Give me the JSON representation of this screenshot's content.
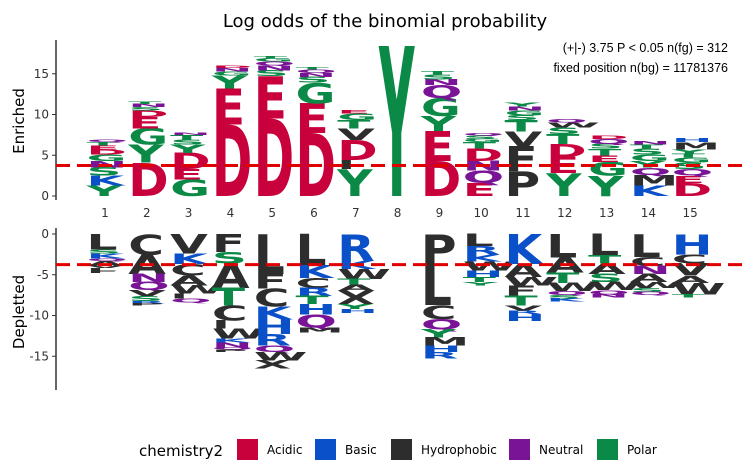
{
  "chart_data": {
    "type": "sequence-logo",
    "title": "Log odds of the binomial probability",
    "annotation_line1": "(+|-) 3.75  P < 0.05 n(fg) = 312",
    "annotation_line2": "fixed position n(bg) = 11781376",
    "enriched_label": "Enriched",
    "depleted_label": "Depletted",
    "x_ticks": [
      "1",
      "2",
      "3",
      "4",
      "5",
      "6",
      "7",
      "8",
      "9",
      "10",
      "11",
      "12",
      "13",
      "14",
      "15"
    ],
    "enriched_ylim": [
      0,
      19
    ],
    "enriched_yticks": [
      "0",
      "5",
      "10",
      "15"
    ],
    "depleted_ylim": [
      -19,
      0.7
    ],
    "depleted_yticks": [
      "0",
      "-5",
      "-10",
      "-15"
    ],
    "threshold": 3.75,
    "legend_title": "chemistry2",
    "legend": [
      {
        "name": "Acidic",
        "color": "#C8003C"
      },
      {
        "name": "Basic",
        "color": "#0A50C8"
      },
      {
        "name": "Hydrophobic",
        "color": "#2D2D2D"
      },
      {
        "name": "Neutral",
        "color": "#7A1496"
      },
      {
        "name": "Polar",
        "color": "#0A8A46"
      }
    ],
    "enriched": [
      [
        [
          "Y",
          1.3
        ],
        [
          "K",
          1.2
        ],
        [
          "S",
          1.0
        ],
        [
          "N",
          0.8
        ],
        [
          "G",
          0.8
        ],
        [
          "D",
          0.6
        ],
        [
          "E",
          0.5
        ],
        [
          "T",
          0.4
        ],
        [
          "Q",
          0.3
        ]
      ],
      [
        [
          "D",
          4.1
        ],
        [
          "Y",
          2.2
        ],
        [
          "G",
          2.0
        ],
        [
          "E",
          1.4
        ],
        [
          "D",
          0.8
        ],
        [
          "S",
          0.4
        ],
        [
          "N",
          0.4
        ],
        [
          "T",
          0.3
        ]
      ],
      [
        [
          "G",
          2.0
        ],
        [
          "E",
          1.3
        ],
        [
          "D",
          2.0
        ],
        [
          "Y",
          1.0
        ],
        [
          "S",
          0.6
        ],
        [
          "T",
          0.6
        ],
        [
          "N",
          0.3
        ]
      ],
      [
        [
          "D",
          8.8
        ],
        [
          "E",
          4.4
        ],
        [
          "Y",
          1.6
        ],
        [
          "G",
          0.5
        ],
        [
          "N",
          0.4
        ],
        [
          "D",
          0.3
        ]
      ],
      [
        [
          "D",
          9.5
        ],
        [
          "E",
          5.2
        ],
        [
          "S",
          0.7
        ],
        [
          "N",
          0.6
        ],
        [
          "Q",
          0.5
        ],
        [
          "G",
          0.4
        ],
        [
          "T",
          0.3
        ]
      ],
      [
        [
          "D",
          7.7
        ],
        [
          "E",
          3.7
        ],
        [
          "G",
          2.5
        ],
        [
          "S",
          0.7
        ],
        [
          "N",
          0.5
        ],
        [
          "Q",
          0.4
        ],
        [
          "T",
          0.3
        ]
      ],
      [
        [
          "Y",
          3.3
        ],
        [
          "I",
          1.1
        ],
        [
          "D",
          2.5
        ],
        [
          "V",
          1.4
        ],
        [
          "T",
          1.0
        ],
        [
          "G",
          0.8
        ],
        [
          "E",
          0.4
        ]
      ],
      [
        [
          "Y",
          18.4
        ]
      ],
      [
        [
          "D",
          4.3
        ],
        [
          "E",
          3.7
        ],
        [
          "Y",
          1.8
        ],
        [
          "G",
          2.2
        ],
        [
          "Q",
          1.6
        ],
        [
          "N",
          0.7
        ],
        [
          "S",
          0.6
        ],
        [
          "T",
          0.4
        ]
      ],
      [
        [
          "E",
          1.6
        ],
        [
          "Q",
          1.5
        ],
        [
          "N",
          1.2
        ],
        [
          "D",
          1.5
        ],
        [
          "T",
          0.8
        ],
        [
          "G",
          0.4
        ],
        [
          "S",
          0.4
        ],
        [
          "Q",
          0.3
        ]
      ],
      [
        [
          "P",
          3.0
        ],
        [
          "F",
          3.1
        ],
        [
          "V",
          1.8
        ],
        [
          "T",
          1.4
        ],
        [
          "S",
          0.6
        ],
        [
          "G",
          0.6
        ],
        [
          "N",
          0.5
        ],
        [
          "Y",
          0.5
        ]
      ],
      [
        [
          "Y",
          2.8
        ],
        [
          "E",
          2.0
        ],
        [
          "D",
          1.6
        ],
        [
          "T",
          1.2
        ],
        [
          "S",
          0.8
        ],
        [
          "W",
          0.6
        ],
        [
          "Q",
          0.4
        ]
      ],
      [
        [
          "Y",
          2.5
        ],
        [
          "G",
          1.7
        ],
        [
          "E",
          0.8
        ],
        [
          "T",
          0.8
        ],
        [
          "S",
          0.6
        ],
        [
          "Q",
          0.6
        ],
        [
          "D",
          0.4
        ]
      ],
      [
        [
          "K",
          1.3
        ],
        [
          "M",
          1.3
        ],
        [
          "Q",
          0.9
        ],
        [
          "Y",
          0.8
        ],
        [
          "G",
          0.8
        ],
        [
          "S",
          0.7
        ],
        [
          "T",
          0.5
        ],
        [
          "N",
          0.4
        ]
      ],
      [
        [
          "D",
          1.6
        ],
        [
          "E",
          0.9
        ],
        [
          "Q",
          0.8
        ],
        [
          "S",
          0.8
        ],
        [
          "G",
          0.6
        ],
        [
          "T",
          0.5
        ],
        [
          "Y",
          0.5
        ],
        [
          "M",
          0.9
        ],
        [
          "H",
          0.5
        ]
      ]
    ],
    "depleted": [
      [
        [
          "L",
          1.9
        ],
        [
          "S",
          0.5
        ],
        [
          "K",
          0.6
        ],
        [
          "Q",
          0.3
        ],
        [
          "A",
          0.6
        ],
        [
          "V",
          0.3
        ],
        [
          "I",
          0.3
        ],
        [
          "F",
          0.3
        ]
      ],
      [
        [
          "C",
          2.5
        ],
        [
          "A",
          2.4
        ],
        [
          "N",
          1.0
        ],
        [
          "Q",
          1.0
        ],
        [
          "V",
          0.7
        ],
        [
          "S",
          0.6
        ],
        [
          "R",
          0.3
        ],
        [
          "P",
          0.3
        ]
      ],
      [
        [
          "V",
          2.4
        ],
        [
          "K",
          1.3
        ],
        [
          "C",
          1.4
        ],
        [
          "A",
          1.2
        ],
        [
          "W",
          1.0
        ],
        [
          "I",
          0.6
        ],
        [
          "Q",
          0.5
        ]
      ],
      [
        [
          "F",
          2.2
        ],
        [
          "S",
          1.4
        ],
        [
          "A",
          3.0
        ],
        [
          "T",
          2.2
        ],
        [
          "C",
          1.8
        ],
        [
          "I",
          1.0
        ],
        [
          "W",
          1.2
        ],
        [
          "K",
          0.5
        ],
        [
          "N",
          0.6
        ],
        [
          "Q",
          0.3
        ],
        [
          "P",
          0.3
        ]
      ],
      [
        [
          "L",
          4.9
        ],
        [
          "F",
          1.8
        ],
        [
          "C",
          2.2
        ],
        [
          "K",
          1.6
        ],
        [
          "H",
          1.8
        ],
        [
          "R",
          1.4
        ],
        [
          "Q",
          0.8
        ],
        [
          "W",
          1.0
        ],
        [
          "X",
          1.0
        ]
      ],
      [
        [
          "L",
          3.8
        ],
        [
          "K",
          1.6
        ],
        [
          "C",
          1.2
        ],
        [
          "R",
          1.0
        ],
        [
          "T",
          1.0
        ],
        [
          "H",
          1.3
        ],
        [
          "Q",
          1.6
        ],
        [
          "M",
          0.6
        ]
      ],
      [
        [
          "R",
          3.3
        ],
        [
          "K",
          1.0
        ],
        [
          "W",
          1.2
        ],
        [
          "T",
          0.7
        ],
        [
          "A",
          0.8
        ],
        [
          "X",
          1.6
        ],
        [
          "Y",
          0.6
        ],
        [
          "H",
          0.5
        ]
      ],
      [],
      [
        [
          "P",
          3.6
        ],
        [
          "L",
          5.1
        ],
        [
          "C",
          1.7
        ],
        [
          "Q",
          1.3
        ],
        [
          "Y",
          1.0
        ],
        [
          "M",
          1.0
        ],
        [
          "H",
          0.8
        ],
        [
          "R",
          0.8
        ]
      ],
      [
        [
          "L",
          1.5
        ],
        [
          "R",
          1.0
        ],
        [
          "K",
          0.9
        ],
        [
          "W",
          1.1
        ],
        [
          "H",
          0.8
        ],
        [
          "T",
          0.6
        ],
        [
          "Y",
          0.4
        ]
      ],
      [
        [
          "K",
          3.7
        ],
        [
          "A",
          1.6
        ],
        [
          "W",
          1.0
        ],
        [
          "F",
          1.3
        ],
        [
          "T",
          1.2
        ],
        [
          "V",
          0.6
        ],
        [
          "R",
          0.4
        ],
        [
          "H",
          0.9
        ]
      ],
      [
        [
          "L",
          2.9
        ],
        [
          "A",
          1.8
        ],
        [
          "T",
          1.3
        ],
        [
          "W",
          1.0
        ],
        [
          "Q",
          0.5
        ],
        [
          "S",
          0.4
        ],
        [
          "K",
          0.4
        ]
      ],
      [
        [
          "L",
          2.6
        ],
        [
          "T",
          1.0
        ],
        [
          "A",
          1.3
        ],
        [
          "S",
          1.0
        ],
        [
          "W",
          1.0
        ],
        [
          "Q",
          0.5
        ],
        [
          "N",
          0.4
        ]
      ],
      [
        [
          "L",
          2.8
        ],
        [
          "C",
          1.1
        ],
        [
          "N",
          1.0
        ],
        [
          "A",
          1.0
        ],
        [
          "W",
          0.7
        ],
        [
          "S",
          0.5
        ],
        [
          "Q",
          0.4
        ]
      ],
      [
        [
          "H",
          2.5
        ],
        [
          "C",
          1.1
        ],
        [
          "V",
          1.5
        ],
        [
          "A",
          0.9
        ],
        [
          "W",
          1.4
        ],
        [
          "T",
          0.4
        ]
      ]
    ],
    "letter_groups": {
      "Acidic": [
        "D",
        "E"
      ],
      "Basic": [
        "K",
        "R",
        "H"
      ],
      "Hydrophobic": [
        "A",
        "V",
        "L",
        "I",
        "P",
        "F",
        "M",
        "W",
        "C",
        "X"
      ],
      "Neutral": [
        "Q",
        "N"
      ],
      "Polar": [
        "G",
        "S",
        "T",
        "Y"
      ]
    }
  }
}
